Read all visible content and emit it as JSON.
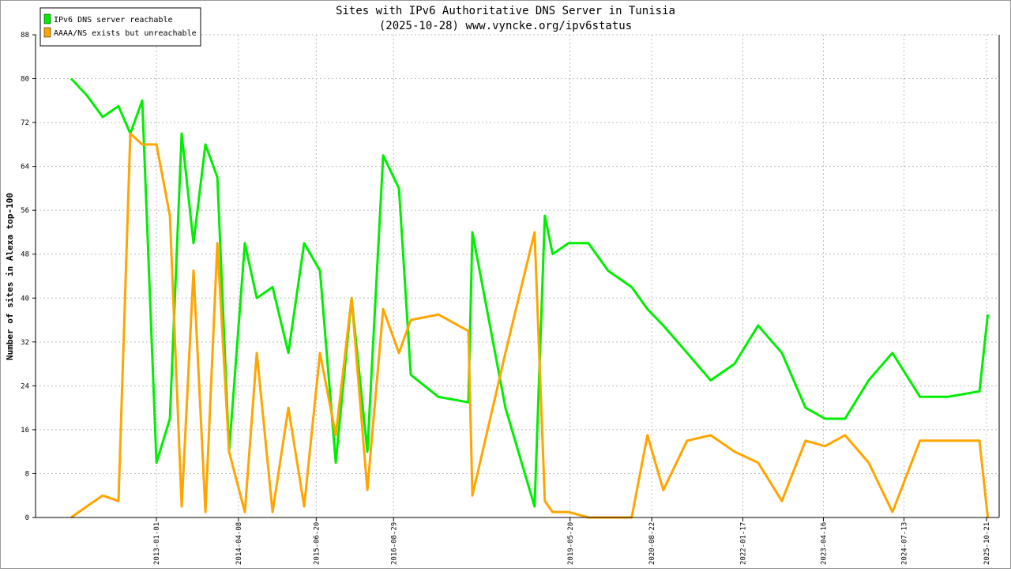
{
  "chart_data": {
    "type": "line",
    "title": "Sites with IPv6 Authoritative DNS Server in Tunisia",
    "subtitle": "(2025-10-28) www.vyncke.org/ipv6status",
    "y_label": "Number of sites in Alexa top-100",
    "x": [
      "2011-09-08",
      "2011-12-05",
      "2012-03-04",
      "2012-06-01",
      "2012-08-07",
      "2012-10-13",
      "2013-01-01",
      "2013-03-18",
      "2013-05-23",
      "2013-07-29",
      "2013-10-04",
      "2013-12-10",
      "2014-02-14",
      "2014-05-14",
      "2014-07-20",
      "2014-10-17",
      "2015-01-14",
      "2015-04-13",
      "2015-07-11",
      "2015-10-08",
      "2016-01-05",
      "2016-04-03",
      "2016-07-01",
      "2016-09-28",
      "2016-12-04",
      "2017-05-08",
      "2017-10-24",
      "2017-11-16",
      "2018-05-21",
      "2018-11-01",
      "2018-12-29",
      "2019-02-11",
      "2019-05-11",
      "2019-08-31",
      "2019-12-20",
      "2020-05-01",
      "2020-07-29",
      "2020-10-26",
      "2021-03-09",
      "2021-07-20",
      "2021-12-01",
      "2022-04-13",
      "2022-08-25",
      "2023-01-05",
      "2023-04-26",
      "2023-08-16",
      "2023-12-27",
      "2024-05-09",
      "2024-10-11",
      "2025-03-16",
      "2025-09-11",
      "2025-10-28"
    ],
    "series": [
      {
        "name": "IPv6 DNS server reachable",
        "color": "#00ee00",
        "values": [
          80,
          77,
          73,
          75,
          70,
          76,
          10,
          18,
          70,
          50,
          68,
          62,
          12,
          50,
          40,
          42,
          30,
          50,
          45,
          10,
          40,
          12,
          66,
          60,
          26,
          22,
          21,
          52,
          20,
          2,
          55,
          48,
          50,
          50,
          45,
          42,
          38,
          35,
          30,
          25,
          28,
          35,
          30,
          20,
          18,
          18,
          25,
          30,
          22,
          22,
          23,
          37
        ]
      },
      {
        "name": "AAAA/NS exists but unreachable",
        "color": "#ffa500",
        "values": [
          0,
          2,
          4,
          3,
          70,
          68,
          68,
          55,
          2,
          45,
          1,
          50,
          12,
          1,
          30,
          1,
          20,
          2,
          30,
          15,
          40,
          5,
          38,
          30,
          36,
          37,
          34,
          4,
          30,
          52,
          3,
          1,
          1,
          0,
          0,
          0,
          15,
          5,
          14,
          15,
          12,
          10,
          3,
          14,
          13,
          15,
          10,
          1,
          14,
          14,
          14,
          0
        ]
      }
    ],
    "xlim": [
      "2011-02-20",
      "2025-12-31"
    ],
    "xticks": [
      "2013-01-01",
      "2014-04-08",
      "2015-06-20",
      "2016-08-29",
      "2019-05-20",
      "2020-08-22",
      "2022-01-17",
      "2023-04-16",
      "2024-07-13",
      "2025-10-21"
    ],
    "ylim": [
      0,
      88
    ],
    "yticks": [
      0,
      8,
      16,
      24,
      32,
      40,
      48,
      56,
      64,
      72,
      80,
      88
    ],
    "grid": true,
    "legend": "top-left"
  }
}
